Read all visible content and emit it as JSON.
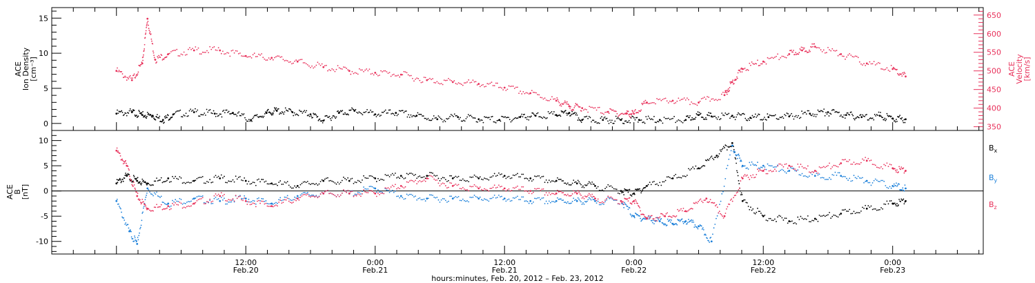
{
  "chart_data": [
    {
      "type": "scatter",
      "ylabel_lines": [
        "ACE",
        "Ion Density",
        "[cm⁻³]"
      ],
      "ylim": [
        -1,
        16.5
      ],
      "yticks": [
        0,
        5,
        10,
        15
      ],
      "y2label_lines": [
        "ACE",
        "Velocity",
        "[km/s]"
      ],
      "y2lim": [
        340,
        670
      ],
      "y2ticks": [
        350,
        400,
        450,
        500,
        550,
        600,
        650
      ],
      "series": [
        {
          "axis": "left",
          "color": "#000000",
          "x": [
            0.0,
            0.06,
            0.1,
            0.14,
            0.18,
            0.22,
            0.3,
            0.38,
            0.45,
            0.52,
            0.58,
            0.62,
            0.68,
            0.75,
            0.8,
            0.86,
            0.92,
            1.0,
            1.08,
            1.16,
            1.24,
            1.32,
            1.4,
            1.48,
            1.56,
            1.62,
            1.7,
            1.75,
            1.8,
            1.88,
            1.95,
            2.02,
            2.1,
            2.2,
            2.25,
            2.3,
            2.38,
            2.45,
            2.52,
            2.6,
            2.68,
            2.75,
            2.82,
            2.88,
            2.95,
            3.0,
            3.05
          ],
          "y": [
            1.4,
            1.6,
            1.2,
            1.1,
            0.5,
            1.3,
            1.6,
            1.4,
            1.5,
            0.5,
            1.5,
            1.8,
            1.6,
            1.3,
            0.4,
            1.5,
            1.8,
            1.3,
            1.5,
            1.1,
            0.6,
            0.9,
            0.6,
            0.5,
            0.9,
            1.1,
            1.2,
            1.5,
            0.5,
            0.5,
            0.5,
            0.5,
            0.5,
            0.5,
            1.2,
            1.0,
            1.1,
            0.8,
            0.9,
            1.0,
            1.4,
            1.6,
            1.2,
            0.9,
            1.1,
            0.7,
            0.6
          ]
        },
        {
          "axis": "right",
          "color": "#e8305a",
          "x": [
            0.0,
            0.06,
            0.1,
            0.12,
            0.15,
            0.2,
            0.3,
            0.4,
            0.5,
            0.6,
            0.7,
            0.8,
            0.9,
            1.0,
            1.1,
            1.2,
            1.3,
            1.4,
            1.5,
            1.6,
            1.7,
            1.75,
            1.8,
            1.9,
            1.97,
            2.0,
            2.05,
            2.15,
            2.25,
            2.35,
            2.38,
            2.42,
            2.5,
            2.6,
            2.65,
            2.7,
            2.8,
            2.9,
            3.0,
            3.05
          ],
          "y": [
            500,
            475,
            520,
            640,
            530,
            545,
            555,
            555,
            540,
            535,
            525,
            510,
            500,
            495,
            490,
            475,
            470,
            465,
            455,
            440,
            420,
            405,
            400,
            390,
            385,
            385,
            415,
            420,
            415,
            435,
            470,
            505,
            525,
            545,
            555,
            565,
            545,
            520,
            505,
            485
          ]
        }
      ]
    },
    {
      "type": "scatter",
      "ylabel_lines": [
        "ACE",
        "B",
        "[nT]"
      ],
      "ylim": [
        -12.5,
        12
      ],
      "yticks": [
        -10,
        -5,
        0,
        5,
        10
      ],
      "legend_placement": "right",
      "series": [
        {
          "name": "Bx",
          "color": "#000000",
          "x": [
            0.0,
            0.04,
            0.08,
            0.12,
            0.2,
            0.3,
            0.4,
            0.5,
            0.6,
            0.7,
            0.8,
            0.9,
            1.0,
            1.1,
            1.2,
            1.3,
            1.4,
            1.5,
            1.6,
            1.7,
            1.78,
            1.85,
            1.95,
            2.0,
            2.05,
            2.15,
            2.25,
            2.32,
            2.38,
            2.42,
            2.5,
            2.6,
            2.7,
            2.8,
            2.9,
            3.0,
            3.05
          ],
          "y": [
            1.5,
            3.0,
            2.0,
            1.5,
            2.5,
            2.0,
            2.5,
            2.0,
            1.5,
            1.0,
            2.0,
            2.0,
            2.5,
            3.0,
            3.0,
            2.5,
            2.5,
            3.0,
            2.5,
            2.0,
            1.5,
            1.0,
            0.0,
            -0.5,
            1.0,
            2.5,
            4.5,
            7.0,
            9.5,
            -2.0,
            -5.0,
            -6.0,
            -5.5,
            -4.5,
            -3.5,
            -2.5,
            -2.0
          ]
        },
        {
          "name": "By",
          "color": "#1a7fd9",
          "x": [
            0.0,
            0.05,
            0.08,
            0.12,
            0.2,
            0.3,
            0.4,
            0.5,
            0.6,
            0.7,
            0.8,
            0.9,
            1.0,
            1.1,
            1.2,
            1.3,
            1.4,
            1.5,
            1.6,
            1.7,
            1.78,
            1.85,
            1.95,
            2.0,
            2.05,
            2.1,
            2.15,
            2.2,
            2.25,
            2.3,
            2.38,
            2.42,
            2.5,
            2.6,
            2.7,
            2.8,
            2.9,
            3.0,
            3.05
          ],
          "y": [
            -2.0,
            -8.0,
            -10.5,
            0.5,
            -2.5,
            -1.5,
            -2.0,
            -1.5,
            -2.5,
            -1.0,
            -0.5,
            -0.5,
            0.5,
            -1.0,
            -1.5,
            -1.5,
            -1.5,
            -1.5,
            -2.0,
            -2.0,
            -2.0,
            -2.0,
            -2.0,
            -5.0,
            -5.5,
            -6.0,
            -6.5,
            -6.0,
            -7.0,
            -10.0,
            9.0,
            5.0,
            5.0,
            4.0,
            3.0,
            3.0,
            2.0,
            1.0,
            0.5
          ]
        },
        {
          "name": "Bz",
          "color": "#e8305a",
          "x": [
            0.0,
            0.04,
            0.08,
            0.12,
            0.2,
            0.3,
            0.4,
            0.5,
            0.6,
            0.7,
            0.8,
            0.9,
            1.0,
            1.1,
            1.2,
            1.3,
            1.4,
            1.5,
            1.6,
            1.7,
            1.78,
            1.85,
            1.95,
            2.0,
            2.05,
            2.12,
            2.2,
            2.28,
            2.35,
            2.42,
            2.5,
            2.6,
            2.7,
            2.8,
            2.9,
            3.0,
            3.05
          ],
          "y": [
            8.0,
            5.0,
            -1.0,
            -3.5,
            -3.0,
            -2.5,
            -1.0,
            -2.0,
            -3.0,
            -1.5,
            -0.5,
            -0.5,
            -0.5,
            1.0,
            2.5,
            1.0,
            0.5,
            0.5,
            0.0,
            -0.5,
            -0.5,
            -1.5,
            -2.0,
            -2.0,
            -5.5,
            -5.0,
            -4.0,
            -1.5,
            -5.0,
            2.5,
            4.0,
            5.0,
            4.0,
            5.5,
            6.0,
            4.5,
            4.0
          ]
        }
      ]
    }
  ],
  "legend": {
    "bx": "B",
    "bx_sub": "x",
    "by": "B",
    "by_sub": "y",
    "bz": "B",
    "bz_sub": "z"
  },
  "x_axis": {
    "xlim": [
      -0.25,
      3.35
    ],
    "title": "hours:minutes, Feb. 20, 2012 – Feb. 23, 2012",
    "ticks": [
      {
        "x": 0.5,
        "time": "12:00",
        "date": "Feb.20"
      },
      {
        "x": 1.0,
        "time": "0:00",
        "date": "Feb.21"
      },
      {
        "x": 1.5,
        "time": "12:00",
        "date": "Feb.21"
      },
      {
        "x": 2.0,
        "time": "0:00",
        "date": "Feb.22"
      },
      {
        "x": 2.5,
        "time": "12:00",
        "date": "Feb.22"
      },
      {
        "x": 3.0,
        "time": "0:00",
        "date": "Feb.23"
      }
    ],
    "minor_step_days": 0.08333
  }
}
